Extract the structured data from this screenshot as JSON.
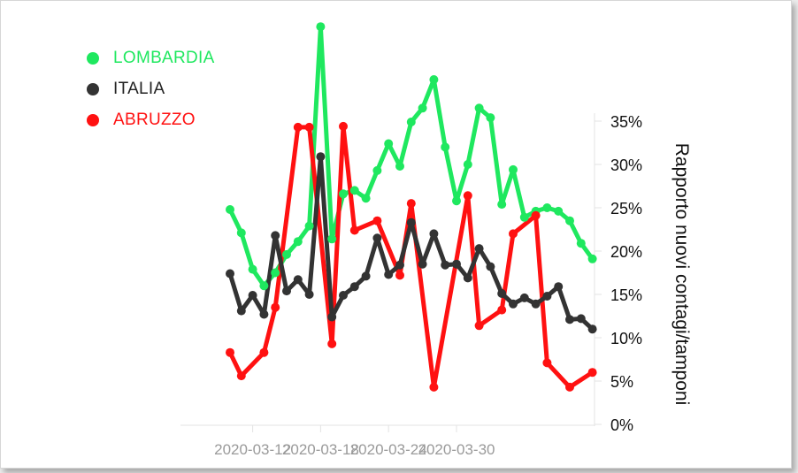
{
  "chart_data": {
    "type": "line",
    "ylabel": "Rapporto nuovi contagi/tamponi",
    "y_axis_side": "right",
    "ylim": [
      0,
      35
    ],
    "y_ticks": [
      "0%",
      "5%",
      "10%",
      "15%",
      "20%",
      "25%",
      "30%",
      "35%"
    ],
    "y_tick_values": [
      0,
      5,
      10,
      15,
      20,
      25,
      30,
      35
    ],
    "x_start": "2020-03-10",
    "x_ticks": [
      "2020-03-12",
      "2020-03-18",
      "2020-03-24",
      "2020-03-30"
    ],
    "x_tick_days": [
      2,
      8,
      14,
      20
    ],
    "grid": false,
    "legend_position": "top-left",
    "series": [
      {
        "name": "LOMBARDIA",
        "color": "#1fe85f",
        "values": [
          24.8,
          22.1,
          17.9,
          16.0,
          17.5,
          19.6,
          21.1,
          22.9,
          45.9,
          21.4,
          26.6,
          27.0,
          26.1,
          29.3,
          32.4,
          29.8,
          34.9,
          36.5,
          39.8,
          32.0,
          25.8,
          30.0,
          36.5,
          35.4,
          25.4,
          29.4,
          23.9,
          24.6,
          25.0,
          24.6,
          23.5,
          20.9,
          19.1
        ]
      },
      {
        "name": "ITALIA",
        "color": "#333333",
        "values": [
          17.4,
          13.1,
          14.9,
          12.7,
          21.8,
          15.4,
          16.7,
          15.0,
          30.9,
          12.4,
          14.9,
          15.9,
          17.1,
          21.5,
          17.3,
          18.4,
          23.3,
          18.5,
          22.0,
          18.4,
          18.5,
          16.9,
          20.3,
          18.2,
          15.1,
          13.9,
          14.6,
          13.9,
          14.8,
          15.9,
          12.1,
          12.2,
          11.0
        ]
      },
      {
        "name": "ABRUZZO",
        "color": "#ff1111",
        "values": [
          8.3,
          5.6,
          null,
          8.3,
          13.5,
          null,
          34.3,
          34.3,
          null,
          9.3,
          34.4,
          22.4,
          null,
          23.5,
          null,
          17.2,
          25.5,
          null,
          4.3,
          null,
          null,
          26.4,
          11.4,
          null,
          13.2,
          22.0,
          null,
          24.1,
          7.1,
          null,
          4.3,
          null,
          6.0
        ]
      }
    ]
  }
}
